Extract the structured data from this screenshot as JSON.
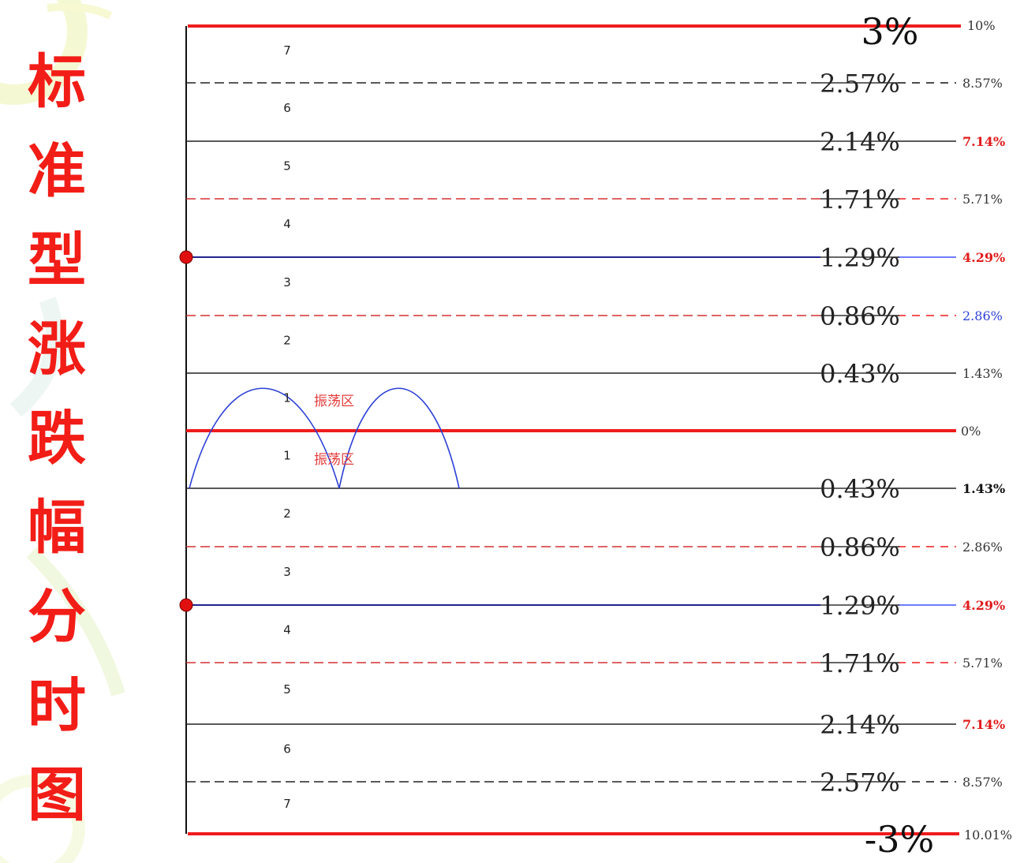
{
  "title_chars": [
    "标",
    "准",
    "型",
    "涨",
    "跌",
    "幅",
    "分",
    "时",
    "图"
  ],
  "zero_right": "0%",
  "top_main": "3%",
  "top_right": "10%",
  "bottom_main": "-3%",
  "bottom_right": "10.01%",
  "upper_levels": [
    {
      "main": "2.57%",
      "right": "8.57%",
      "style": "dashed-black",
      "right_color": "#333333"
    },
    {
      "main": "2.14%",
      "right": "7.14%",
      "style": "solid-black",
      "right_color": "#e01a1a"
    },
    {
      "main": "1.71%",
      "right": "5.71%",
      "style": "dashed-red",
      "right_color": "#333333"
    },
    {
      "main": "1.29%",
      "right": "4.29%",
      "style": "solid-blue",
      "right_color": "#e01a1a"
    },
    {
      "main": "0.86%",
      "right": "2.86%",
      "style": "dashed-red",
      "right_color": "#2b3fd6"
    },
    {
      "main": "0.43%",
      "right": "1.43%",
      "style": "solid-black",
      "right_color": "#333333"
    }
  ],
  "lower_levels": [
    {
      "main": "0.43%",
      "right": "1.43%",
      "style": "solid-black",
      "right_color": "#111111"
    },
    {
      "main": "0.86%",
      "right": "2.86%",
      "style": "dashed-red",
      "right_color": "#333333"
    },
    {
      "main": "1.29%",
      "right": "4.29%",
      "style": "solid-blue",
      "right_color": "#e01a1a"
    },
    {
      "main": "1.71%",
      "right": "5.71%",
      "style": "dashed-red",
      "right_color": "#333333"
    },
    {
      "main": "2.14%",
      "right": "7.14%",
      "style": "solid-black",
      "right_color": "#e01a1a"
    },
    {
      "main": "2.57%",
      "right": "8.57%",
      "style": "dashed-black",
      "right_color": "#333333"
    }
  ],
  "upper_zones": [
    "7",
    "6",
    "5",
    "4",
    "3",
    "2",
    "1"
  ],
  "lower_zones": [
    "1",
    "2",
    "3",
    "4",
    "5",
    "6",
    "7"
  ],
  "oscillation_label": "振荡区",
  "colors": {
    "red": "#ee1c1c",
    "blue": "#2b3fd6",
    "black": "#222222",
    "title": "#f21d17"
  }
}
